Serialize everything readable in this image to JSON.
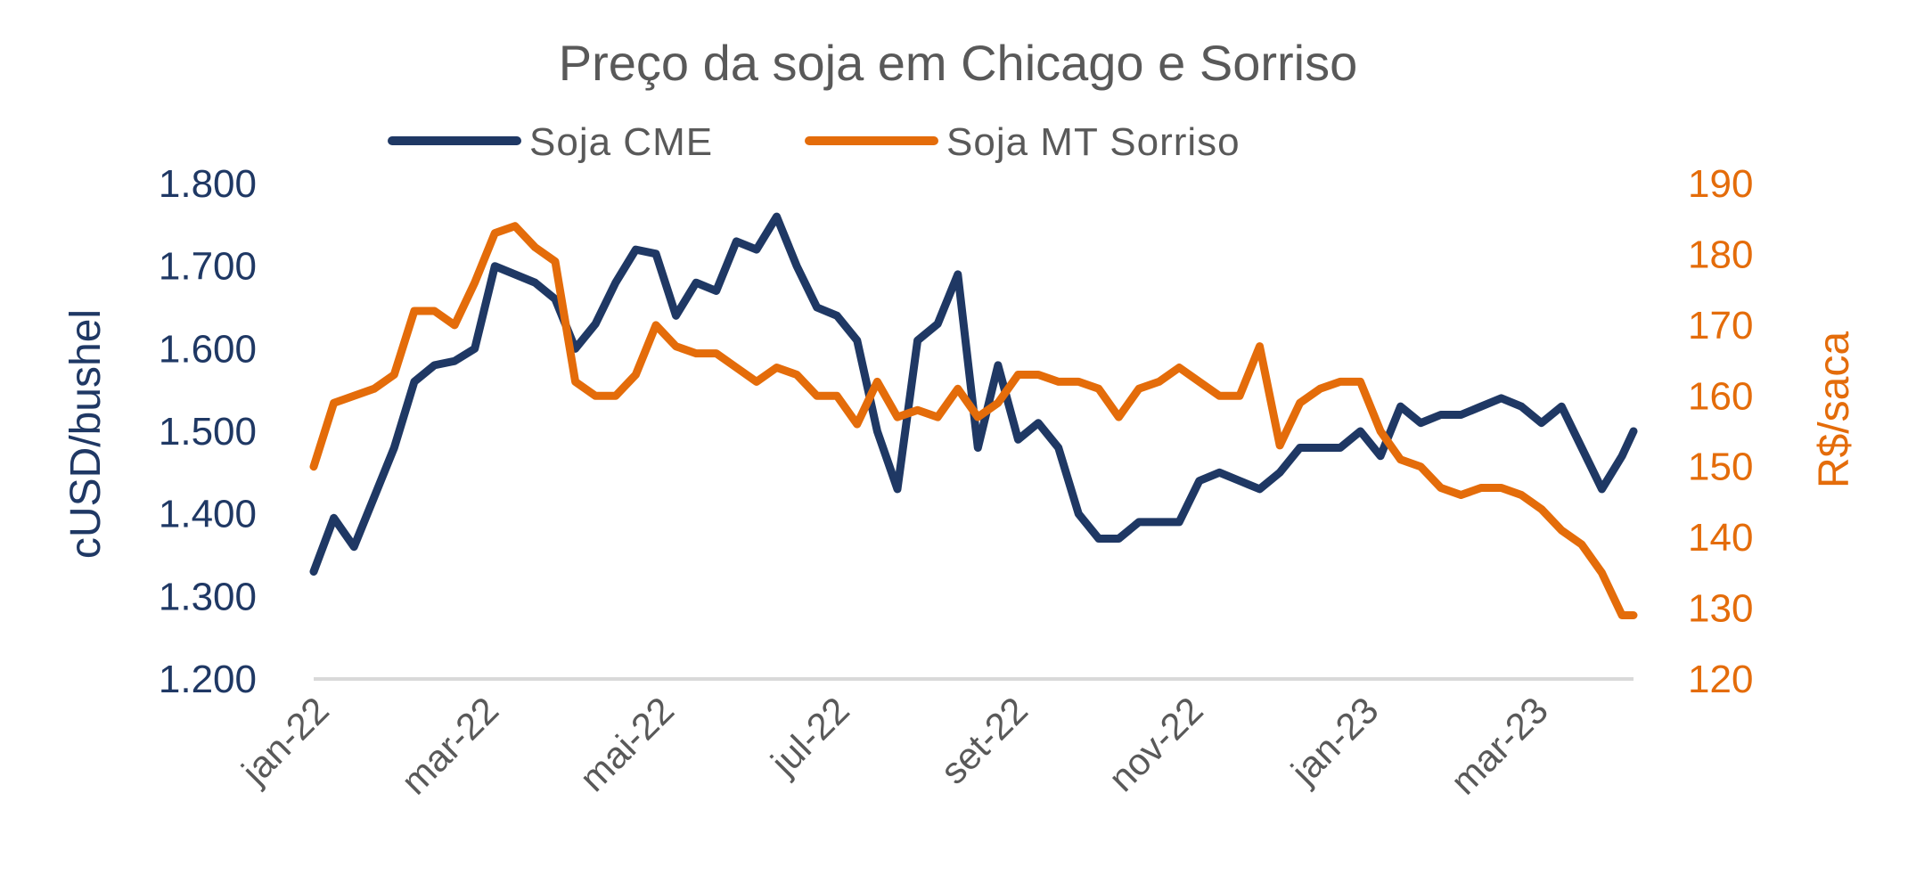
{
  "chart_data": {
    "type": "line",
    "title": "Preço da soja em Chicago e Sorriso",
    "legend_position": "top",
    "grid": false,
    "colors": {
      "cme": "#1f3864",
      "sorriso": "#e46c0a",
      "text": "#595959",
      "baseline": "#d9d9d9"
    },
    "x_ticks": [
      {
        "date": "2022-01-01",
        "label": "jan-22"
      },
      {
        "date": "2022-03-01",
        "label": "mar-22"
      },
      {
        "date": "2022-05-01",
        "label": "mai-22"
      },
      {
        "date": "2022-07-01",
        "label": "jul-22"
      },
      {
        "date": "2022-09-01",
        "label": "set-22"
      },
      {
        "date": "2022-11-01",
        "label": "nov-22"
      },
      {
        "date": "2023-01-01",
        "label": "jan-23"
      },
      {
        "date": "2023-03-01",
        "label": "mar-23"
      }
    ],
    "y_left": {
      "label": "cUSD/bushel",
      "range": [
        1200,
        1800
      ],
      "ticks": [
        "1.200",
        "1.300",
        "1.400",
        "1.500",
        "1.600",
        "1.700",
        "1.800"
      ]
    },
    "y_right": {
      "label": "R$/saca",
      "range": [
        120,
        190
      ],
      "ticks": [
        "120",
        "130",
        "140",
        "150",
        "160",
        "170",
        "180",
        "190"
      ]
    },
    "x": [
      "2022-01-03",
      "2022-01-10",
      "2022-01-17",
      "2022-01-24",
      "2022-01-31",
      "2022-02-07",
      "2022-02-14",
      "2022-02-21",
      "2022-02-28",
      "2022-03-07",
      "2022-03-14",
      "2022-03-21",
      "2022-03-28",
      "2022-04-04",
      "2022-04-11",
      "2022-04-18",
      "2022-04-25",
      "2022-05-02",
      "2022-05-09",
      "2022-05-16",
      "2022-05-23",
      "2022-05-30",
      "2022-06-06",
      "2022-06-13",
      "2022-06-20",
      "2022-06-27",
      "2022-07-04",
      "2022-07-11",
      "2022-07-18",
      "2022-07-25",
      "2022-08-01",
      "2022-08-08",
      "2022-08-15",
      "2022-08-22",
      "2022-08-29",
      "2022-09-05",
      "2022-09-12",
      "2022-09-19",
      "2022-09-26",
      "2022-10-03",
      "2022-10-10",
      "2022-10-17",
      "2022-10-24",
      "2022-10-31",
      "2022-11-07",
      "2022-11-14",
      "2022-11-21",
      "2022-11-28",
      "2022-12-05",
      "2022-12-12",
      "2022-12-19",
      "2022-12-26",
      "2023-01-02",
      "2023-01-09",
      "2023-01-16",
      "2023-01-23",
      "2023-01-30",
      "2023-02-06",
      "2023-02-13",
      "2023-02-20",
      "2023-02-27",
      "2023-03-06",
      "2023-03-13",
      "2023-03-20",
      "2023-03-27",
      "2023-04-03",
      "2023-04-07"
    ],
    "series": [
      {
        "name": "Soja CME",
        "axis": "left",
        "values": [
          1330,
          1395,
          1360,
          1420,
          1480,
          1560,
          1580,
          1585,
          1600,
          1700,
          1690,
          1680,
          1660,
          1600,
          1630,
          1680,
          1720,
          1715,
          1640,
          1680,
          1670,
          1730,
          1720,
          1760,
          1700,
          1650,
          1640,
          1610,
          1500,
          1430,
          1610,
          1630,
          1690,
          1480,
          1580,
          1490,
          1510,
          1480,
          1400,
          1370,
          1370,
          1390,
          1390,
          1390,
          1440,
          1450,
          1440,
          1430,
          1450,
          1480,
          1480,
          1480,
          1500,
          1470,
          1530,
          1510,
          1520,
          1520,
          1530,
          1540,
          1530,
          1510,
          1530,
          1480,
          1430,
          1470,
          1500
        ]
      },
      {
        "name": "Soja MT Sorriso",
        "axis": "right",
        "values": [
          150,
          159,
          160,
          161,
          163,
          172,
          172,
          170,
          176,
          183,
          184,
          181,
          179,
          162,
          160,
          160,
          163,
          170,
          167,
          166,
          166,
          164,
          162,
          164,
          163,
          160,
          160,
          156,
          162,
          157,
          158,
          157,
          161,
          157,
          159,
          163,
          163,
          162,
          162,
          161,
          157,
          161,
          162,
          164,
          162,
          160,
          160,
          167,
          153,
          159,
          161,
          162,
          162,
          155,
          151,
          150,
          147,
          146,
          147,
          147,
          146,
          144,
          141,
          139,
          135,
          129,
          129
        ]
      }
    ]
  }
}
